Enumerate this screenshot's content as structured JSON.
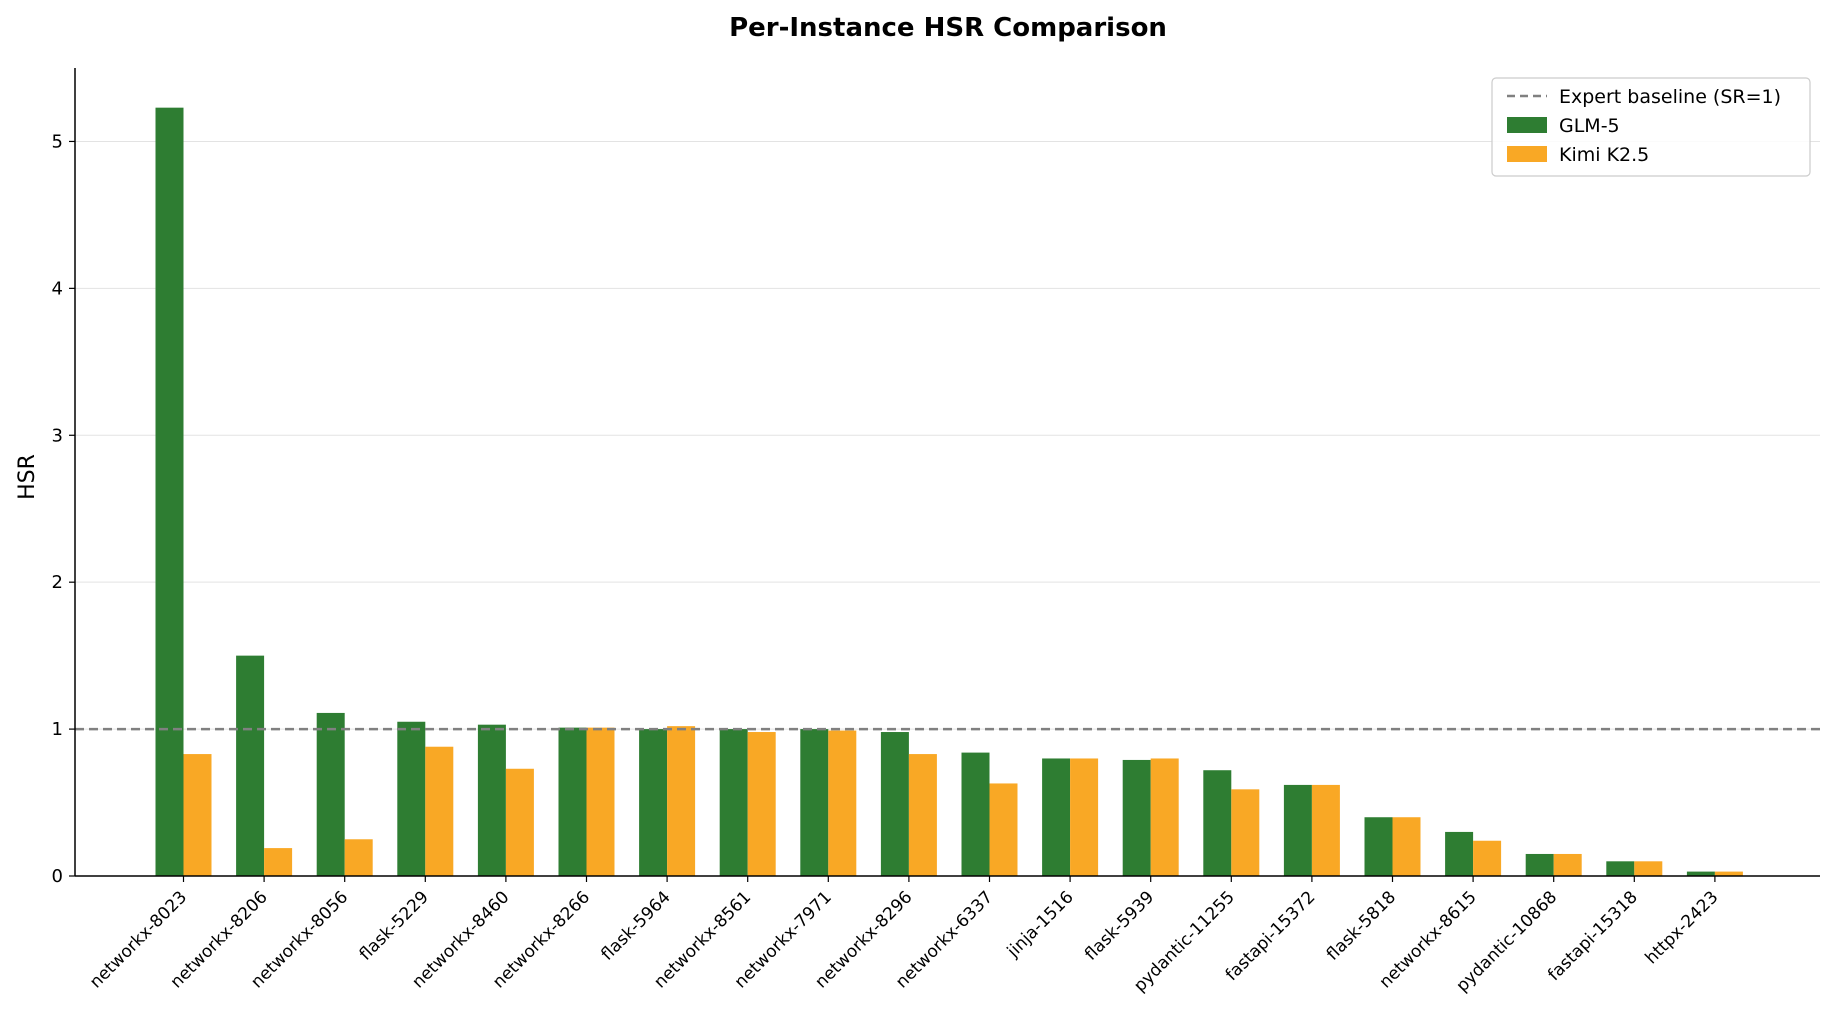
{
  "chart_data": {
    "type": "bar",
    "title": "Per-Instance HSR Comparison",
    "xlabel": "",
    "ylabel": "HSR",
    "ylim": [
      0,
      5.5
    ],
    "yticks": [
      "0",
      "1",
      "2",
      "3",
      "4",
      "5"
    ],
    "grid": "horizontal",
    "legend_position": "top-right",
    "categories": [
      "networkx-8023",
      "networkx-8206",
      "networkx-8056",
      "flask-5229",
      "networkx-8460",
      "networkx-8266",
      "flask-5964",
      "networkx-8561",
      "networkx-7971",
      "networkx-8296",
      "networkx-6337",
      "jinja-1516",
      "flask-5939",
      "pydantic-11255",
      "fastapi-15372",
      "flask-5818",
      "networkx-8615",
      "pydantic-10868",
      "fastapi-15318",
      "httpx-2423"
    ],
    "series": [
      {
        "name": "GLM-5",
        "color": "#2e7d32",
        "values": [
          5.23,
          1.5,
          1.11,
          1.05,
          1.03,
          1.01,
          1.0,
          1.0,
          1.0,
          0.98,
          0.84,
          0.8,
          0.79,
          0.72,
          0.62,
          0.4,
          0.3,
          0.15,
          0.1,
          0.03
        ]
      },
      {
        "name": "Kimi K2.5",
        "color": "#f9a825",
        "values": [
          0.83,
          0.19,
          0.25,
          0.88,
          0.73,
          1.01,
          1.02,
          0.98,
          0.99,
          0.83,
          0.63,
          0.8,
          0.8,
          0.59,
          0.62,
          0.4,
          0.24,
          0.15,
          0.1,
          0.03
        ]
      }
    ],
    "reference_line": {
      "label": "Expert baseline (SR=1)",
      "value": 1,
      "color": "#808080"
    }
  }
}
